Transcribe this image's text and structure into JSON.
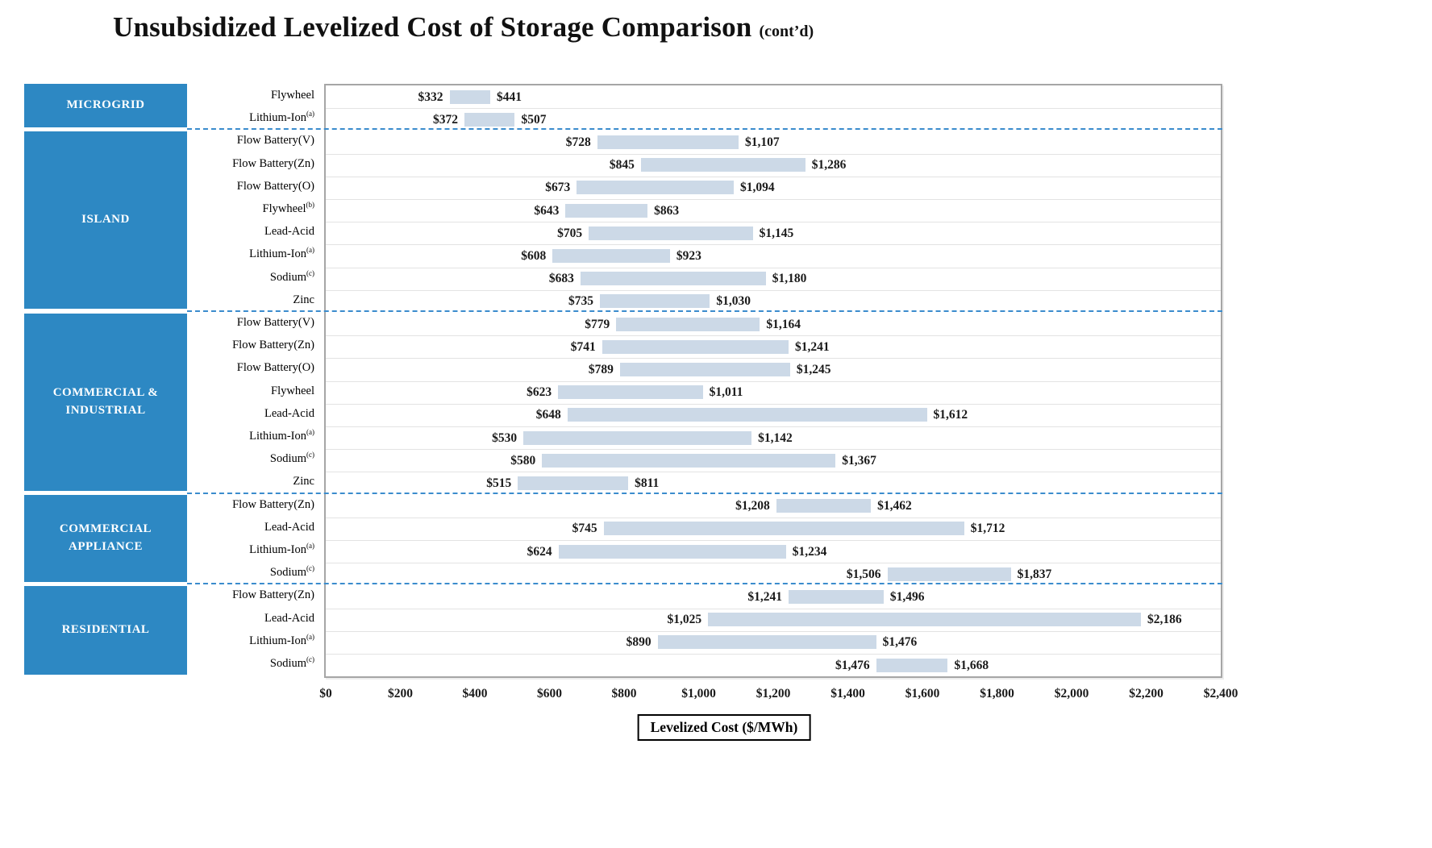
{
  "title": "Unsubsidized Levelized Cost of Storage Comparison",
  "subtitle": "(cont’d)",
  "colors": {
    "category_bg": "#2d88c3",
    "bar_fill": "#ccd9e7",
    "group_separator": "#3b8ccd",
    "plot_border": "#a6a6a6",
    "value_text": "#1a1a1a"
  },
  "chart_data": {
    "type": "bar",
    "variant": "floating-range-bar",
    "title": "Unsubsidized Levelized Cost of Storage Comparison (cont’d)",
    "xlabel": "Levelized Cost ($/MWh)",
    "xlim": [
      0,
      2400
    ],
    "xticks": [
      "$0",
      "$200",
      "$400",
      "$600",
      "$800",
      "$1,000",
      "$1,200",
      "$1,400",
      "$1,600",
      "$1,800",
      "$2,000",
      "$2,200",
      "$2,400"
    ],
    "xtick_values": [
      0,
      200,
      400,
      600,
      800,
      1000,
      1200,
      1400,
      1600,
      1800,
      2000,
      2200,
      2400
    ],
    "grid": "horizontal-row-separators",
    "legend": "none",
    "groups": [
      {
        "name": "MICROGRID",
        "rows": [
          {
            "label": "Flywheel",
            "sup": "",
            "low": 332,
            "high": 441,
            "low_label": "$332",
            "high_label": "$441"
          },
          {
            "label": "Lithium-Ion",
            "sup": "(a)",
            "low": 372,
            "high": 507,
            "low_label": "$372",
            "high_label": "$507"
          }
        ]
      },
      {
        "name": "ISLAND",
        "rows": [
          {
            "label": "Flow Battery(V)",
            "sup": "",
            "low": 728,
            "high": 1107,
            "low_label": "$728",
            "high_label": "$1,107"
          },
          {
            "label": "Flow Battery(Zn)",
            "sup": "",
            "low": 845,
            "high": 1286,
            "low_label": "$845",
            "high_label": "$1,286"
          },
          {
            "label": "Flow Battery(O)",
            "sup": "",
            "low": 673,
            "high": 1094,
            "low_label": "$673",
            "high_label": "$1,094"
          },
          {
            "label": "Flywheel",
            "sup": "(b)",
            "low": 643,
            "high": 863,
            "low_label": "$643",
            "high_label": "$863"
          },
          {
            "label": "Lead-Acid",
            "sup": "",
            "low": 705,
            "high": 1145,
            "low_label": "$705",
            "high_label": "$1,145"
          },
          {
            "label": "Lithium-Ion",
            "sup": "(a)",
            "low": 608,
            "high": 923,
            "low_label": "$608",
            "high_label": "$923"
          },
          {
            "label": "Sodium",
            "sup": "(c)",
            "low": 683,
            "high": 1180,
            "low_label": "$683",
            "high_label": "$1,180"
          },
          {
            "label": "Zinc",
            "sup": "",
            "low": 735,
            "high": 1030,
            "low_label": "$735",
            "high_label": "$1,030"
          }
        ]
      },
      {
        "name": "COMMERCIAL & INDUSTRIAL",
        "rows": [
          {
            "label": "Flow Battery(V)",
            "sup": "",
            "low": 779,
            "high": 1164,
            "low_label": "$779",
            "high_label": "$1,164"
          },
          {
            "label": "Flow Battery(Zn)",
            "sup": "",
            "low": 741,
            "high": 1241,
            "low_label": "$741",
            "high_label": "$1,241"
          },
          {
            "label": "Flow Battery(O)",
            "sup": "",
            "low": 789,
            "high": 1245,
            "low_label": "$789",
            "high_label": "$1,245"
          },
          {
            "label": "Flywheel",
            "sup": "",
            "low": 623,
            "high": 1011,
            "low_label": "$623",
            "high_label": "$1,011"
          },
          {
            "label": "Lead-Acid",
            "sup": "",
            "low": 648,
            "high": 1612,
            "low_label": "$648",
            "high_label": "$1,612"
          },
          {
            "label": "Lithium-Ion",
            "sup": "(a)",
            "low": 530,
            "high": 1142,
            "low_label": "$530",
            "high_label": "$1,142"
          },
          {
            "label": "Sodium",
            "sup": "(c)",
            "low": 580,
            "high": 1367,
            "low_label": "$580",
            "high_label": "$1,367"
          },
          {
            "label": "Zinc",
            "sup": "",
            "low": 515,
            "high": 811,
            "low_label": "$515",
            "high_label": "$811"
          }
        ]
      },
      {
        "name": "COMMERCIAL APPLIANCE",
        "rows": [
          {
            "label": "Flow Battery(Zn)",
            "sup": "",
            "low": 1208,
            "high": 1462,
            "low_label": "$1,208",
            "high_label": "$1,462"
          },
          {
            "label": "Lead-Acid",
            "sup": "",
            "low": 745,
            "high": 1712,
            "low_label": "$745",
            "high_label": "$1,712"
          },
          {
            "label": "Lithium-Ion",
            "sup": "(a)",
            "low": 624,
            "high": 1234,
            "low_label": "$624",
            "high_label": "$1,234"
          },
          {
            "label": "Sodium",
            "sup": "(c)",
            "low": 1506,
            "high": 1837,
            "low_label": "$1,506",
            "high_label": "$1,837"
          }
        ]
      },
      {
        "name": "RESIDENTIAL",
        "rows": [
          {
            "label": "Flow Battery(Zn)",
            "sup": "",
            "low": 1241,
            "high": 1496,
            "low_label": "$1,241",
            "high_label": "$1,496"
          },
          {
            "label": "Lead-Acid",
            "sup": "",
            "low": 1025,
            "high": 2186,
            "low_label": "$1,025",
            "high_label": "$2,186"
          },
          {
            "label": "Lithium-Ion",
            "sup": "(a)",
            "low": 890,
            "high": 1476,
            "low_label": "$890",
            "high_label": "$1,476"
          },
          {
            "label": "Sodium",
            "sup": "(c)",
            "low": 1476,
            "high": 1668,
            "low_label": "$1,476",
            "high_label": "$1,668"
          }
        ]
      }
    ]
  }
}
